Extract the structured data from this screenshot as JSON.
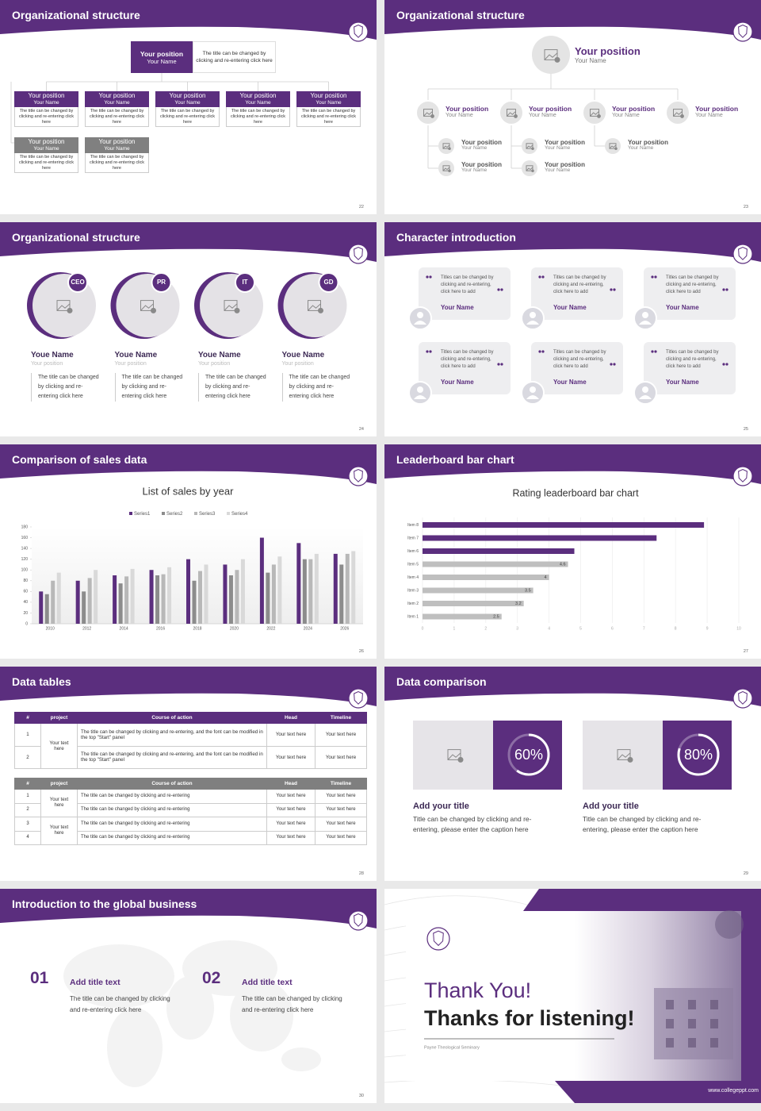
{
  "slides": [
    {
      "title": "Organizational structure",
      "page": 22,
      "top": {
        "position": "Your position",
        "name": "Your Name",
        "text": "The title can be changed by clicking and re-entering click here"
      },
      "rows": [
        [
          {
            "position": "Your position",
            "name": "Your Name",
            "text": "The title can be changed by clicking and re-entering click here"
          },
          {
            "position": "Your position",
            "name": "Your Name",
            "text": "The title can be changed by clicking and re-entering click here"
          },
          {
            "position": "Your position",
            "name": "Your Name",
            "text": "The title can be changed by clicking and re-entering click here"
          },
          {
            "position": "Your position",
            "name": "Your Name",
            "text": "The title can be changed by clicking and re-entering click here"
          },
          {
            "position": "Your position",
            "name": "Your Name",
            "text": "The title can be changed by clicking and re-entering click here"
          }
        ],
        [
          {
            "position": "Your position",
            "name": "Your Name",
            "text": "The title can be changed by clicking and re-entering click here"
          },
          {
            "position": "Your position",
            "name": "Your Name",
            "text": "The title can be changed by clicking and re-entering click here"
          }
        ]
      ]
    },
    {
      "title": "Organizational structure",
      "page": 23,
      "top": {
        "position": "Your position",
        "name": "Your Name"
      },
      "nodes": [
        {
          "position": "Your position",
          "name": "Your Name",
          "children": [
            {
              "position": "Your position",
              "name": "Your Name"
            },
            {
              "position": "Your position",
              "name": "Your Name"
            }
          ]
        },
        {
          "position": "Your position",
          "name": "Your Name",
          "children": [
            {
              "position": "Your position",
              "name": "Your Name"
            },
            {
              "position": "Your position",
              "name": "Your Name"
            }
          ]
        },
        {
          "position": "Your position",
          "name": "Your Name",
          "children": [
            {
              "position": "Your position",
              "name": "Your Name"
            }
          ]
        },
        {
          "position": "Your position",
          "name": "Your Name",
          "children": []
        }
      ]
    },
    {
      "title": "Organizational structure",
      "page": 24,
      "people": [
        {
          "badge": "CEO",
          "name": "Youe Name",
          "position": "Your position",
          "text": "The title can be changed by clicking and re-entering click here"
        },
        {
          "badge": "PR",
          "name": "Youe Name",
          "position": "Your position",
          "text": "The title can be changed by clicking and re-entering click here"
        },
        {
          "badge": "IT",
          "name": "Youe Name",
          "position": "Your position",
          "text": "The title can be changed by clicking and re-entering click here"
        },
        {
          "badge": "GD",
          "name": "Youe Name",
          "position": "Your position",
          "text": "The title can be changed by clicking and re-entering click here"
        }
      ]
    },
    {
      "title": "Character introduction",
      "page": 25,
      "cards": [
        {
          "text": "Titles can be changed by clicking and re-entering, click here to add",
          "name": "Your Name"
        },
        {
          "text": "Titles can be changed by clicking and re-entering, click here to add",
          "name": "Your Name"
        },
        {
          "text": "Titles can be changed by clicking and re-entering, click here to add",
          "name": "Your Name"
        },
        {
          "text": "Titles can be changed by clicking and re-entering, click here to add",
          "name": "Your Name"
        },
        {
          "text": "Titles can be changed by clicking and re-entering, click here to add",
          "name": "Your Name"
        },
        {
          "text": "Titles can be changed by clicking and re-entering, click here to add",
          "name": "Your Name"
        }
      ]
    },
    {
      "title": "Comparison of sales data",
      "page": 26,
      "chart_data": {
        "type": "bar",
        "title": "List of sales by year",
        "categories": [
          "2010",
          "2012",
          "2014",
          "2016",
          "2018",
          "2020",
          "2022",
          "2024",
          "2026"
        ],
        "series": [
          {
            "name": "Series1",
            "color": "#5b2e7e",
            "values": [
              60,
              80,
              90,
              100,
              120,
              110,
              160,
              150,
              130
            ]
          },
          {
            "name": "Series2",
            "color": "#8c8c8c",
            "values": [
              55,
              60,
              75,
              90,
              80,
              90,
              95,
              120,
              110
            ]
          },
          {
            "name": "Series3",
            "color": "#b8b8b8",
            "values": [
              80,
              85,
              88,
              92,
              98,
              100,
              110,
              120,
              130
            ]
          },
          {
            "name": "Series4",
            "color": "#d9d9d9",
            "values": [
              95,
              100,
              102,
              105,
              110,
              120,
              125,
              130,
              135
            ]
          }
        ],
        "ylim": [
          0,
          180
        ],
        "yticks": [
          0,
          20,
          40,
          60,
          80,
          100,
          120,
          140,
          160,
          180
        ],
        "legend": "top"
      }
    },
    {
      "title": "Leaderboard bar chart",
      "page": 27,
      "chart_data": {
        "type": "barh",
        "title": "Rating leaderboard bar chart",
        "categories": [
          "Item 1",
          "Item 2",
          "Item 3",
          "Item 4",
          "Item 5",
          "Item 6",
          "Item 7",
          "Item 8"
        ],
        "values": [
          2.5,
          3.2,
          3.5,
          4,
          4.6,
          4.8,
          7.4,
          8.9
        ],
        "value_labels": [
          "2.5",
          "3.2",
          "3.5",
          "4",
          "4.6",
          null,
          null,
          null
        ],
        "colors": [
          "#bfbfbf",
          "#bfbfbf",
          "#bfbfbf",
          "#bfbfbf",
          "#bfbfbf",
          "#5b2e7e",
          "#5b2e7e",
          "#5b2e7e"
        ],
        "xlim": [
          0,
          10
        ],
        "xticks": [
          0,
          1,
          2,
          3,
          4,
          5,
          6,
          7,
          8,
          9,
          10
        ],
        "grid": true
      }
    },
    {
      "title": "Data tables",
      "page": 28,
      "tables": [
        {
          "header": [
            "#",
            "project",
            "Course of action",
            "Head",
            "Timeline"
          ],
          "groups": [
            {
              "project": "Your text here",
              "rows": [
                [
                  1,
                  "The title can be changed by clicking and re-entering, and the font can be modified in the top \"Start\" panel",
                  "Your text here",
                  "Your text here"
                ],
                [
                  2,
                  "The title can be changed by clicking and re-entering, and the font can be modified in the top \"Start\" panel",
                  "Your text here",
                  "Your text here"
                ]
              ]
            }
          ]
        },
        {
          "header": [
            "#",
            "project",
            "Course of action",
            "Head",
            "Timeline"
          ],
          "groups": [
            {
              "project": "Your text here",
              "rows": [
                [
                  1,
                  "The title can be changed by clicking and re-entering",
                  "Your text here",
                  "Your text here"
                ],
                [
                  2,
                  "The title can be changed by clicking and re-entering",
                  "Your text here",
                  "Your text here"
                ]
              ]
            },
            {
              "project": "Your text here",
              "rows": [
                [
                  3,
                  "The title can be changed by clicking and re-entering",
                  "Your text here",
                  "Your text here"
                ],
                [
                  4,
                  "The title can be changed by clicking and re-entering",
                  "Your text here",
                  "Your text here"
                ]
              ]
            }
          ]
        }
      ]
    },
    {
      "title": "Data comparison",
      "page": 29,
      "cards": [
        {
          "value": 60,
          "value_label": "60%",
          "heading": "Add your title",
          "text": "Title can be changed by clicking and re-entering, please enter the caption here"
        },
        {
          "value": 80,
          "value_label": "80%",
          "heading": "Add your title",
          "text": "Title can be changed by clicking and re-entering, please enter the caption here"
        }
      ]
    },
    {
      "title": "Introduction to the global business",
      "page": 30,
      "items": [
        {
          "number": "01",
          "heading": "Add title text",
          "text": "The title can be changed by clicking and re-entering click here"
        },
        {
          "number": "02",
          "heading": "Add title text",
          "text": "The title can be changed by clicking and re-entering click here"
        }
      ]
    },
    {
      "heading": "Thank You!",
      "subheading": "Thanks for listening!",
      "caption": "Payne Theological Seminary",
      "url": "www.collegeppt.com"
    }
  ]
}
